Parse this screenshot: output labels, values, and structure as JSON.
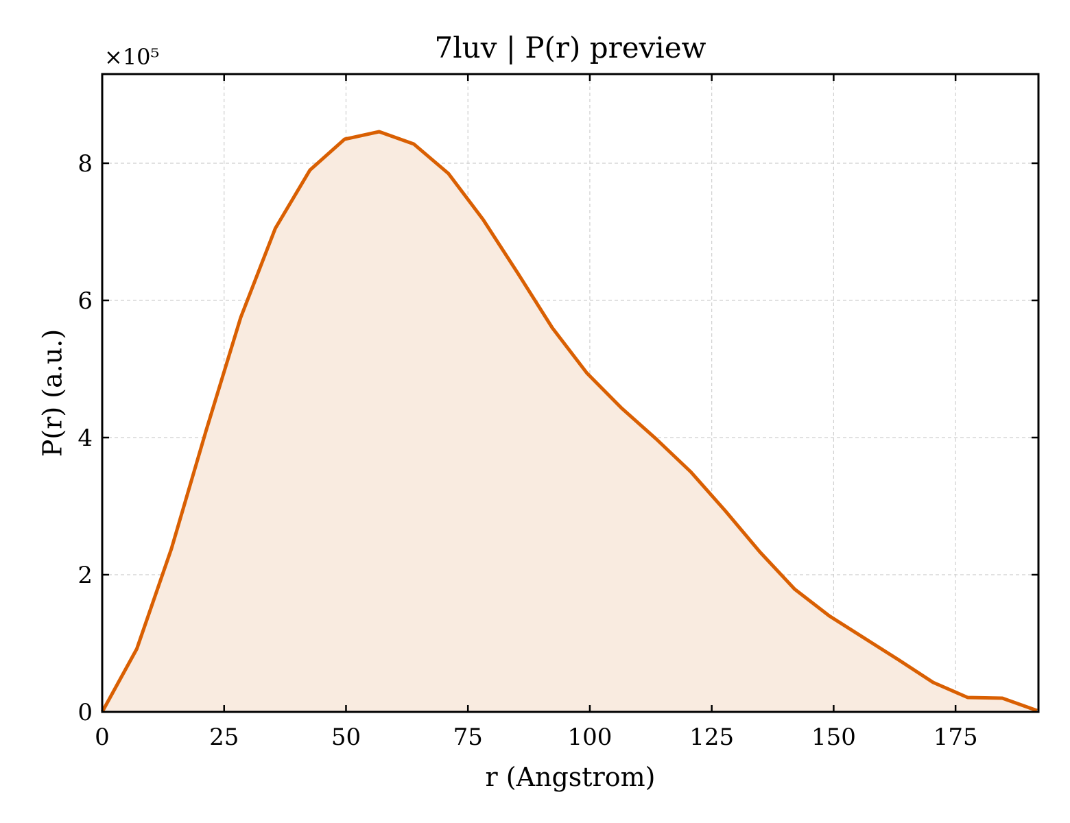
{
  "chart_data": {
    "type": "area",
    "title": "7luv | P(r) preview",
    "xlabel": "r (Angstrom)",
    "ylabel": "P(r) (a.u.)",
    "y_multiplier": "×10⁵",
    "xlim": [
      0,
      192
    ],
    "ylim": [
      0,
      9.3
    ],
    "xticks": [
      0,
      25,
      50,
      75,
      100,
      125,
      150,
      175
    ],
    "yticks": [
      0,
      2,
      4,
      6,
      8
    ],
    "grid": true,
    "line_color": "#d95f02",
    "fill_color": "#f9ebe0",
    "series": [
      {
        "x": [
          0,
          7.1,
          14.2,
          21.3,
          28.4,
          35.5,
          42.6,
          49.7,
          56.8,
          63.9,
          71.0,
          78.1,
          85.2,
          92.3,
          99.4,
          106.5,
          113.6,
          120.7,
          127.8,
          134.9,
          142.0,
          149.1,
          156.2,
          163.3,
          170.4,
          177.5,
          184.6,
          191.7
        ],
        "y": [
          0,
          0.92,
          2.38,
          4.1,
          5.75,
          7.05,
          7.9,
          8.35,
          8.46,
          8.28,
          7.85,
          7.18,
          6.4,
          5.6,
          4.94,
          4.43,
          3.98,
          3.5,
          2.93,
          2.33,
          1.79,
          1.4,
          1.08,
          0.76,
          0.43,
          0.21,
          0.2,
          0.02
        ]
      }
    ]
  }
}
